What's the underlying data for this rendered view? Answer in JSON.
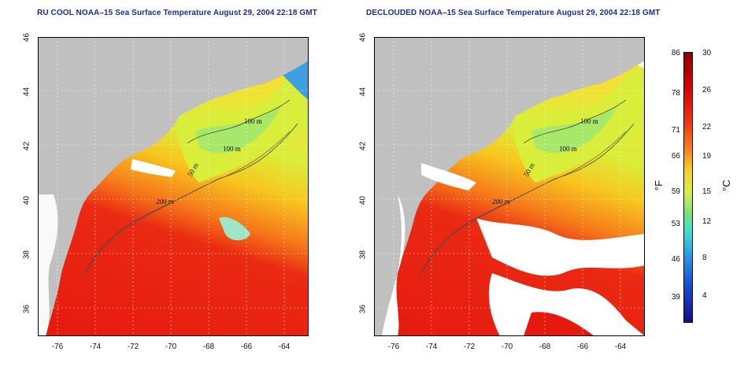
{
  "panels": [
    {
      "title": "RU COOL NOAA–15 Sea Surface Temperature August 29, 2004 22:18 GMT"
    },
    {
      "title": "DECLOUDED NOAA–15 Sea Surface Temperature August 29, 2004 22:18 GMT"
    }
  ],
  "axes": {
    "lat_ticks": [
      "46",
      "44",
      "42",
      "40",
      "38",
      "36"
    ],
    "lon_ticks": [
      "-76",
      "-74",
      "-72",
      "-70",
      "-68",
      "-66",
      "-64"
    ]
  },
  "contours": {
    "labels": [
      "100 m",
      "100 m",
      "50 m",
      "200 m",
      "50 m",
      "100 m"
    ]
  },
  "colorbar": {
    "f_ticks": [
      "86",
      "78",
      "71",
      "66",
      "59",
      "53",
      "46",
      "39"
    ],
    "c_ticks": [
      "30",
      "26",
      "22",
      "19",
      "15",
      "12",
      "8",
      "4"
    ],
    "f_unit": "°F",
    "c_unit": "°C"
  },
  "colors": {
    "land": "#c0c0c0",
    "title": "#1b2aa8",
    "warm": "#e81e10",
    "mid": "#f7d31e",
    "cool": "#7fe07a"
  }
}
